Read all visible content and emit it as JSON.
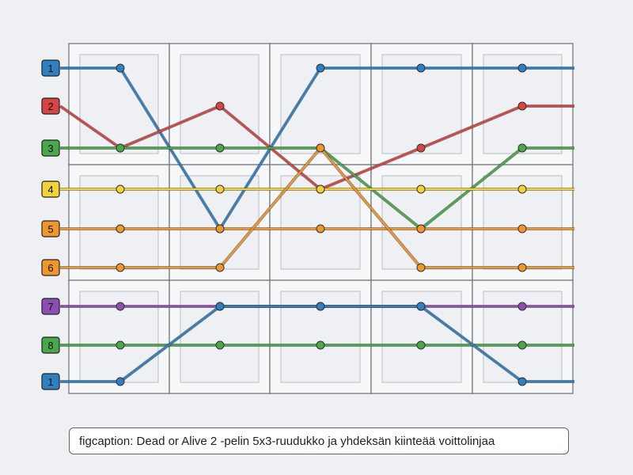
{
  "grid": {
    "columns": 5,
    "rows": 3
  },
  "row_labels": [
    {
      "text": "1",
      "color": "#2f7fc1"
    },
    {
      "text": "2",
      "color": "#d64545"
    },
    {
      "text": "3",
      "color": "#4aa84a"
    },
    {
      "text": "4",
      "color": "#f2d23a"
    },
    {
      "text": "5",
      "color": "#f0962e"
    },
    {
      "text": "6",
      "color": "#f0962e"
    },
    {
      "text": "7",
      "color": "#8a4fb0"
    },
    {
      "text": "8",
      "color": "#4aa84a"
    },
    {
      "text": "1",
      "color": "#2f7fc1"
    }
  ],
  "paylines": [
    {
      "line": "1",
      "color": "#2f7fc1",
      "pattern": [
        1,
        5,
        1,
        1,
        1
      ]
    },
    {
      "line": "2",
      "color": "#d64545",
      "pattern": [
        3,
        2,
        4,
        3,
        2
      ]
    },
    {
      "line": "3",
      "color": "#4aa84a",
      "pattern": [
        3,
        3,
        3,
        5,
        3
      ]
    },
    {
      "line": "4",
      "color": "#f2d23a",
      "pattern": [
        4,
        4,
        4,
        4,
        4
      ]
    },
    {
      "line": "5",
      "color": "#f0962e",
      "pattern": [
        5,
        5,
        5,
        5,
        5
      ]
    },
    {
      "line": "6",
      "color": "#f0962e",
      "pattern": [
        6,
        6,
        3,
        6,
        6
      ]
    },
    {
      "line": "7",
      "color": "#8a4fb0",
      "pattern": [
        7,
        7,
        7,
        7,
        7
      ]
    },
    {
      "line": "8",
      "color": "#4aa84a",
      "pattern": [
        8,
        8,
        8,
        8,
        8
      ]
    },
    {
      "line": "1",
      "color": "#2f7fc1",
      "pattern": [
        9,
        7,
        7,
        7,
        9
      ]
    }
  ],
  "caption": "figcaption: Dead or Alive 2 -pelin 5x3-ruudukko ja yhdeksän kiinteää voittolinjaa"
}
